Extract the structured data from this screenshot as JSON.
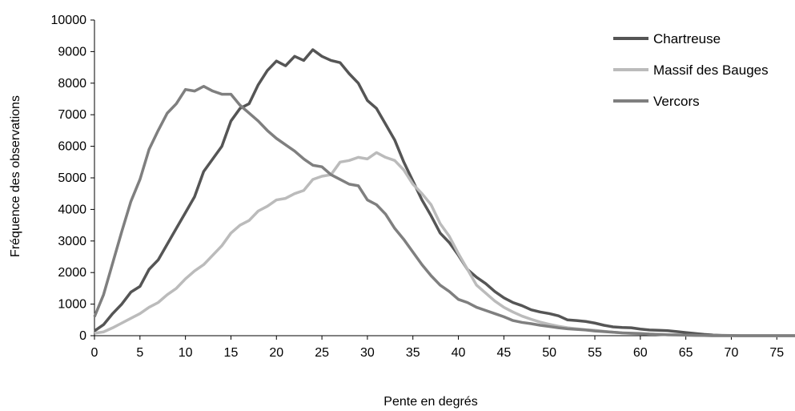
{
  "chart_data": {
    "type": "line",
    "title": "",
    "xlabel": "Pente en degrés",
    "ylabel": "Fréquence des observations",
    "xlim": [
      0,
      77
    ],
    "ylim": [
      0,
      10000
    ],
    "x_ticks": [
      0,
      5,
      10,
      15,
      20,
      25,
      30,
      35,
      40,
      45,
      50,
      55,
      60,
      65,
      70,
      75
    ],
    "y_ticks": [
      0,
      1000,
      2000,
      3000,
      4000,
      5000,
      6000,
      7000,
      8000,
      9000,
      10000
    ],
    "grid": false,
    "legend_position": "top-right",
    "series": [
      {
        "name": "Chartreuse",
        "color": "#555555",
        "x": [
          0,
          1,
          2,
          3,
          4,
          5,
          6,
          7,
          8,
          9,
          10,
          11,
          12,
          13,
          14,
          15,
          16,
          17,
          18,
          19,
          20,
          21,
          22,
          23,
          24,
          25,
          26,
          27,
          28,
          29,
          30,
          31,
          32,
          33,
          34,
          35,
          36,
          37,
          38,
          39,
          40,
          41,
          42,
          43,
          44,
          45,
          46,
          47,
          48,
          49,
          50,
          51,
          52,
          53,
          54,
          55,
          56,
          57,
          58,
          59,
          60,
          61,
          62,
          63,
          64,
          65,
          66,
          67,
          68,
          69,
          70,
          71,
          72,
          73,
          74,
          75,
          76,
          77
        ],
        "y": [
          150,
          350,
          700,
          1000,
          1380,
          1560,
          2100,
          2400,
          2900,
          3400,
          3900,
          4400,
          5200,
          5600,
          6000,
          6800,
          7200,
          7350,
          7950,
          8400,
          8700,
          8550,
          8850,
          8720,
          9060,
          8850,
          8720,
          8650,
          8300,
          8000,
          7450,
          7200,
          6700,
          6200,
          5500,
          4900,
          4300,
          3800,
          3250,
          2950,
          2550,
          2100,
          1850,
          1650,
          1400,
          1200,
          1050,
          950,
          820,
          750,
          700,
          630,
          500,
          480,
          450,
          400,
          330,
          280,
          260,
          250,
          210,
          180,
          170,
          160,
          130,
          100,
          70,
          40,
          20,
          10,
          5,
          0,
          0,
          0,
          0,
          0,
          0,
          0
        ]
      },
      {
        "name": "Massif des Bauges",
        "color": "#bbbbbb",
        "x": [
          0,
          1,
          2,
          3,
          4,
          5,
          6,
          7,
          8,
          9,
          10,
          11,
          12,
          13,
          14,
          15,
          16,
          17,
          18,
          19,
          20,
          21,
          22,
          23,
          24,
          25,
          26,
          27,
          28,
          29,
          30,
          31,
          32,
          33,
          34,
          35,
          36,
          37,
          38,
          39,
          40,
          41,
          42,
          43,
          44,
          45,
          46,
          47,
          48,
          49,
          50,
          51,
          52,
          53,
          54,
          55,
          56,
          57,
          58,
          59,
          60,
          61,
          62,
          63,
          64,
          65,
          66,
          67,
          68,
          69,
          70,
          71,
          72,
          73,
          74,
          75,
          76,
          77
        ],
        "y": [
          80,
          120,
          250,
          400,
          550,
          700,
          900,
          1050,
          1300,
          1500,
          1800,
          2050,
          2250,
          2550,
          2850,
          3250,
          3500,
          3650,
          3950,
          4100,
          4300,
          4350,
          4500,
          4600,
          4950,
          5050,
          5100,
          5500,
          5550,
          5650,
          5600,
          5800,
          5650,
          5550,
          5250,
          4800,
          4500,
          4150,
          3550,
          3150,
          2600,
          2100,
          1600,
          1350,
          1100,
          900,
          750,
          620,
          520,
          430,
          360,
          300,
          250,
          220,
          190,
          170,
          140,
          110,
          90,
          70,
          60,
          50,
          40,
          30,
          20,
          15,
          10,
          5,
          0,
          0,
          0,
          0,
          0,
          0,
          0,
          0,
          0,
          0
        ]
      },
      {
        "name": "Vercors",
        "color": "#7f7f7f",
        "x": [
          0,
          1,
          2,
          3,
          4,
          5,
          6,
          7,
          8,
          9,
          10,
          11,
          12,
          13,
          14,
          15,
          16,
          17,
          18,
          19,
          20,
          21,
          22,
          23,
          24,
          25,
          26,
          27,
          28,
          29,
          30,
          31,
          32,
          33,
          34,
          35,
          36,
          37,
          38,
          39,
          40,
          41,
          42,
          43,
          44,
          45,
          46,
          47,
          48,
          49,
          50,
          51,
          52,
          53,
          54,
          55,
          56,
          57,
          58,
          59,
          60,
          61,
          62,
          63,
          64,
          65,
          66,
          67,
          68,
          69,
          70,
          71,
          72,
          73,
          74,
          75,
          76,
          77
        ],
        "y": [
          600,
          1300,
          2300,
          3300,
          4250,
          4950,
          5900,
          6500,
          7050,
          7350,
          7800,
          7750,
          7900,
          7750,
          7650,
          7650,
          7300,
          7050,
          6800,
          6500,
          6250,
          6050,
          5850,
          5600,
          5400,
          5350,
          5100,
          4950,
          4800,
          4750,
          4300,
          4150,
          3850,
          3400,
          3050,
          2650,
          2250,
          1900,
          1600,
          1400,
          1150,
          1050,
          900,
          800,
          700,
          600,
          480,
          420,
          380,
          330,
          290,
          250,
          220,
          200,
          180,
          150,
          130,
          110,
          90,
          80,
          70,
          50,
          40,
          30,
          25,
          20,
          10,
          5,
          0,
          0,
          0,
          0,
          0,
          0,
          0,
          0,
          0,
          0
        ]
      }
    ]
  }
}
